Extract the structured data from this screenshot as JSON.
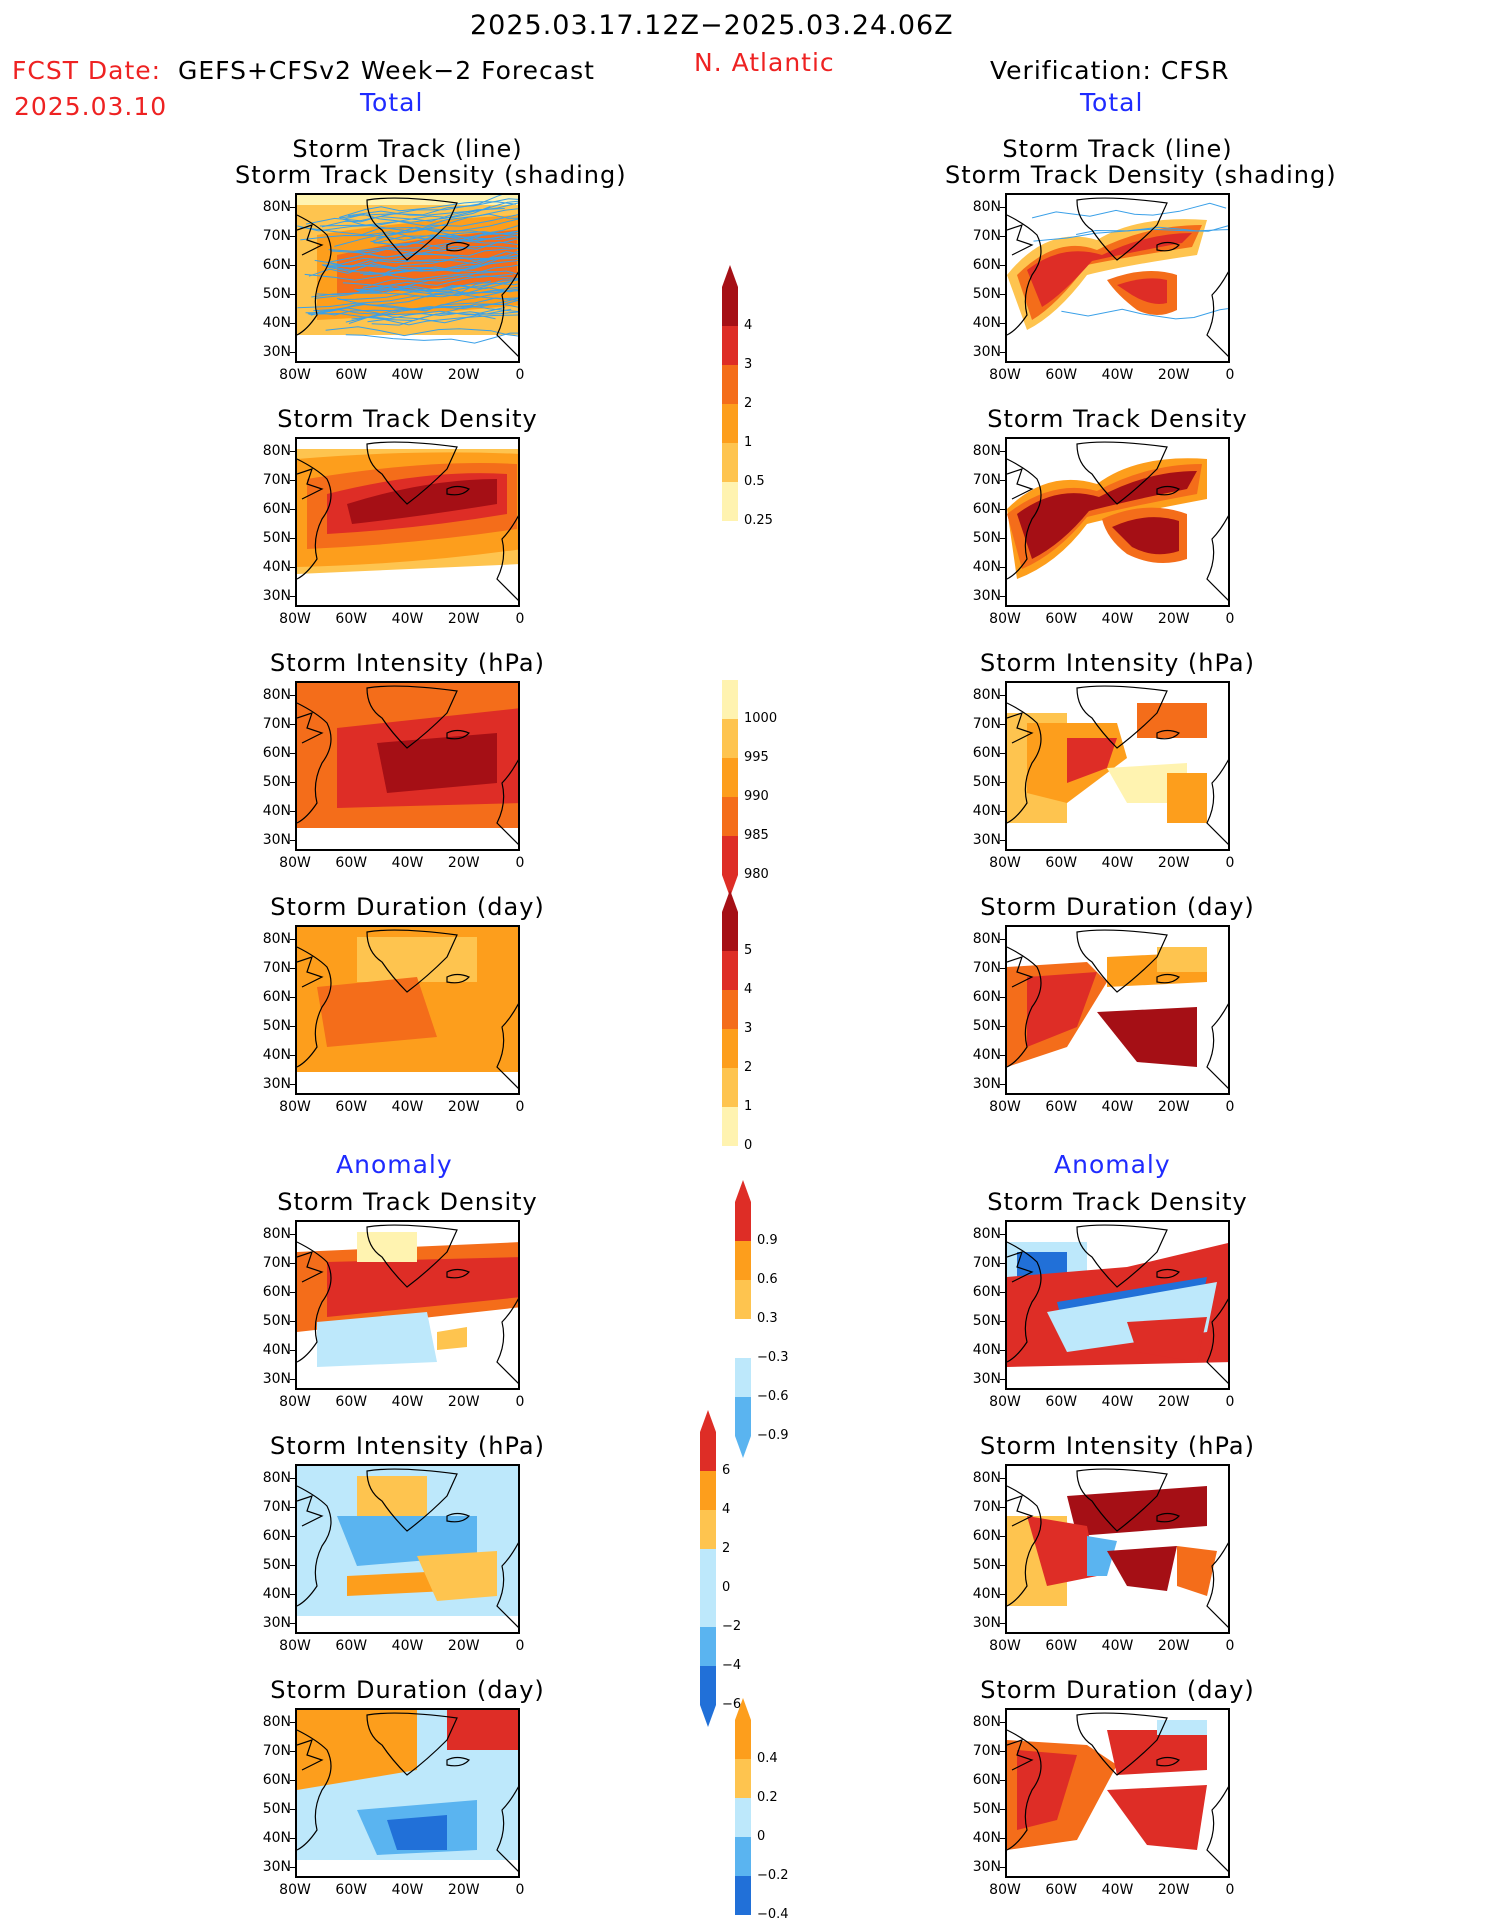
{
  "header": {
    "title": "2025.03.17.12Z−2025.03.24.06Z",
    "fcst_label": "FCST Date:",
    "fcst_model": "GEFS+CFSv2 Week−2 Forecast",
    "fcst_date": "2025.03.10",
    "region": "N. Atlantic",
    "verification": "Verification: CFSR",
    "total_left": "Total",
    "total_right": "Total",
    "anomaly_left": "Anomaly",
    "anomaly_right": "Anomaly"
  },
  "axes": {
    "y_ticks": [
      "80N",
      "70N",
      "60N",
      "50N",
      "40N",
      "30N"
    ],
    "x_ticks": [
      "80W",
      "60W",
      "40W",
      "20W",
      "0"
    ]
  },
  "panels": {
    "track_title_1": "Storm Track (line)",
    "track_title_2": "Storm Track Density (shading)",
    "density": "Storm Track Density",
    "intensity": "Storm Intensity (hPa)",
    "duration": "Storm Duration (day)"
  },
  "colorbars": {
    "density": [
      "4",
      "3",
      "2",
      "1",
      "0.5",
      "0.25"
    ],
    "intensity": [
      "1000",
      "995",
      "990",
      "985",
      "980"
    ],
    "duration": [
      "5",
      "4",
      "3",
      "2",
      "1",
      "0"
    ],
    "anom_density": [
      "0.9",
      "0.6",
      "0.3",
      "−0.3",
      "−0.6",
      "−0.9"
    ],
    "anom_intensity": [
      "6",
      "4",
      "2",
      "0",
      "−2",
      "−4",
      "−6"
    ],
    "anom_duration": [
      "0.4",
      "0.2",
      "0",
      "−0.2",
      "−0.4"
    ]
  },
  "colors": {
    "dark_red": "#a50f15",
    "red": "#de2d26",
    "orange_red": "#f46d1a",
    "orange": "#fd9e1c",
    "light_orange": "#fec44f",
    "pale_yellow": "#fff3b0",
    "light_blue": "#bde8fb",
    "mid_blue": "#5ab4f0",
    "blue": "#2170d8",
    "track_blue": "#3aa0e8"
  }
}
